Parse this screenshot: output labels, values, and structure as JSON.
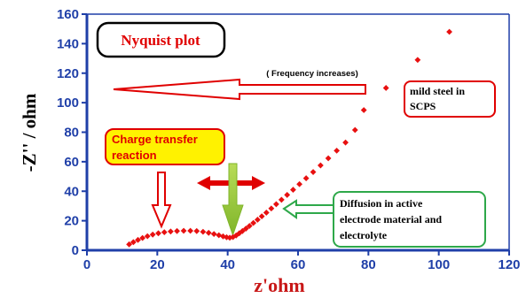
{
  "chart_data": {
    "type": "scatter",
    "xlabel": "z'ohm",
    "ylabel": "-Z'' / ohm",
    "xlim": [
      0,
      120
    ],
    "ylim": [
      0,
      160
    ],
    "xticks": [
      0,
      20,
      40,
      60,
      80,
      100,
      120
    ],
    "yticks": [
      0,
      20,
      40,
      60,
      80,
      100,
      120,
      140,
      160
    ],
    "grid": false,
    "marker_color": "#e81010",
    "points": [
      [
        12.0,
        4.0
      ],
      [
        13.2,
        5.5
      ],
      [
        14.5,
        7.0
      ],
      [
        15.8,
        8.3
      ],
      [
        17.2,
        9.5
      ],
      [
        18.7,
        10.6
      ],
      [
        20.3,
        11.5
      ],
      [
        22.0,
        12.2
      ],
      [
        23.8,
        12.7
      ],
      [
        25.6,
        13.0
      ],
      [
        27.5,
        13.2
      ],
      [
        29.4,
        13.2
      ],
      [
        31.2,
        13.0
      ],
      [
        33.0,
        12.5
      ],
      [
        34.6,
        11.8
      ],
      [
        36.1,
        11.0
      ],
      [
        37.5,
        10.2
      ],
      [
        38.7,
        9.4
      ],
      [
        39.7,
        8.8
      ],
      [
        40.6,
        8.5
      ],
      [
        41.5,
        8.9
      ],
      [
        42.4,
        10.0
      ],
      [
        43.3,
        11.5
      ],
      [
        44.2,
        13.0
      ],
      [
        45.2,
        14.7
      ],
      [
        46.2,
        16.5
      ],
      [
        47.3,
        18.5
      ],
      [
        48.5,
        20.7
      ],
      [
        49.7,
        23.0
      ],
      [
        51.0,
        25.5
      ],
      [
        52.4,
        28.3
      ],
      [
        53.8,
        31.2
      ],
      [
        55.3,
        34.2
      ],
      [
        56.9,
        37.5
      ],
      [
        58.6,
        41.0
      ],
      [
        60.4,
        44.8
      ],
      [
        62.3,
        48.8
      ],
      [
        64.3,
        53.0
      ],
      [
        66.4,
        57.5
      ],
      [
        68.6,
        62.3
      ],
      [
        71.0,
        67.5
      ],
      [
        73.5,
        73.0
      ],
      [
        76.2,
        81.5
      ],
      [
        78.7,
        95.0
      ],
      [
        85.0,
        110.0
      ],
      [
        94.0,
        129.0
      ],
      [
        103.0,
        148.0
      ]
    ],
    "annotations": {
      "title_box": "Nyquist plot",
      "frequency_note": "( Frequency increases)",
      "material_label": [
        "mild steel in",
        "SCPS"
      ],
      "charge_transfer": [
        "Charge transfer",
        "reaction"
      ],
      "diffusion": [
        "Diffusion in active",
        "electrode material and",
        "electrolyte"
      ]
    },
    "colors": {
      "axis": "#1f3fa8",
      "ticks": "#1f3fa8",
      "x_title": "#c81818",
      "accent_red": "#e00000",
      "charge_box_fill": "#fff200",
      "diffusion_border": "#2ea84a",
      "green_arrow": "#8cc63f"
    }
  }
}
